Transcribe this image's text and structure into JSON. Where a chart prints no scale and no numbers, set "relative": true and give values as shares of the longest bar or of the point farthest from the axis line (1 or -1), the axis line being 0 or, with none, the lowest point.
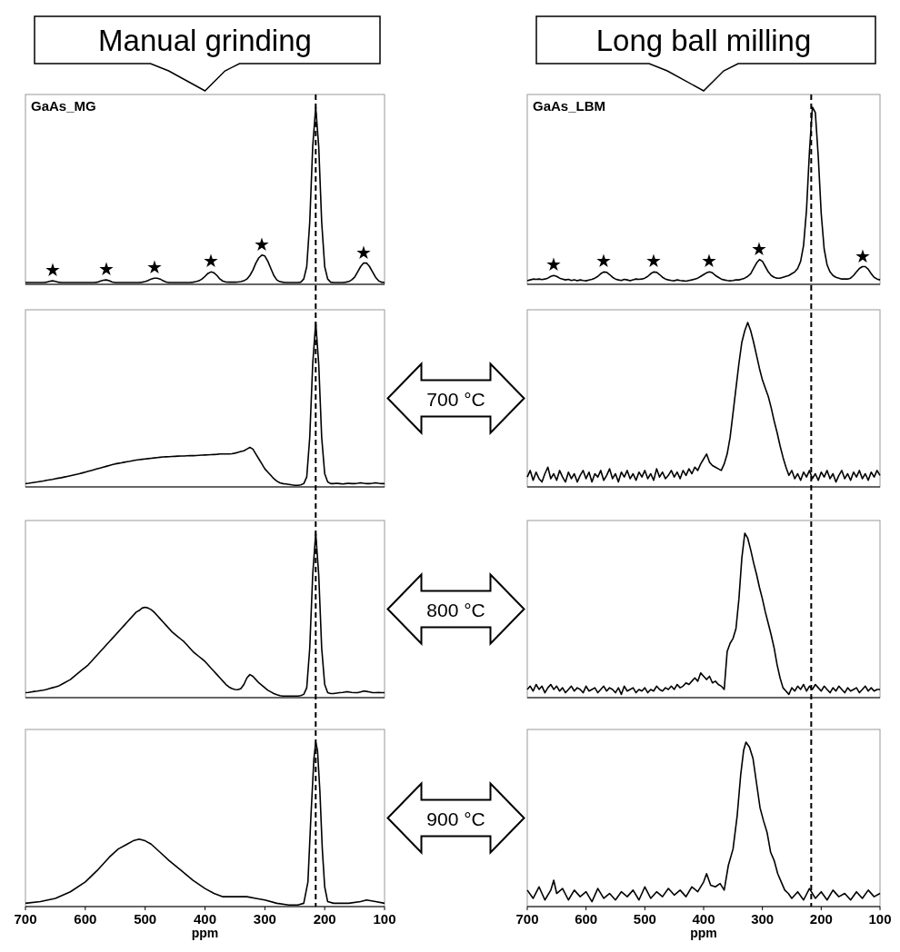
{
  "chart_data": [
    {
      "type": "line",
      "title": "Manual grinding",
      "subtitle": "GaAs_MG",
      "relative": true,
      "line_style": "solid",
      "marker": "none",
      "categories": [
        null,
        null,
        null,
        null,
        null,
        null,
        null,
        null,
        null,
        null,
        null,
        null,
        null,
        null,
        null,
        null,
        null,
        null,
        null,
        null,
        null,
        null,
        null,
        null,
        null,
        null,
        null,
        null,
        null,
        null,
        null,
        null,
        null,
        null,
        null,
        null,
        null,
        null,
        null,
        null,
        null,
        null,
        null,
        null,
        null,
        null,
        null,
        null,
        null,
        null,
        null,
        null,
        null,
        null,
        null,
        null,
        null,
        null,
        null,
        null,
        null,
        null,
        null,
        null,
        null,
        null,
        null,
        null,
        null,
        null,
        null,
        null,
        null,
        null,
        null,
        null,
        null,
        null,
        null,
        null,
        null,
        null,
        null,
        null,
        null,
        null,
        null,
        null,
        null,
        null,
        null,
        null,
        null,
        null,
        null,
        null,
        null,
        null,
        null,
        null,
        null,
        null,
        null,
        null,
        null,
        null,
        null,
        null,
        null,
        null,
        null,
        null,
        null,
        null,
        null,
        null,
        null,
        null,
        null,
        null,
        null
      ],
      "color": "#000000",
      "values": [
        0.01,
        0.01,
        0.01,
        0.01,
        0.01,
        0.01,
        0.01,
        0.012,
        0.017,
        0.02,
        0.017,
        0.012,
        0.01,
        0.01,
        0.01,
        0.01,
        0.01,
        0.01,
        0.01,
        0.01,
        0.01,
        0.01,
        0.01,
        0.01,
        0.012,
        0.018,
        0.023,
        0.025,
        0.02,
        0.013,
        0.01,
        0.01,
        0.01,
        0.01,
        0.01,
        0.01,
        0.01,
        0.01,
        0.01,
        0.012,
        0.015,
        0.022,
        0.03,
        0.035,
        0.035,
        0.03,
        0.02,
        0.013,
        0.01,
        0.01,
        0.01,
        0.01,
        0.01,
        0.01,
        0.01,
        0.01,
        0.012,
        0.015,
        0.02,
        0.03,
        0.045,
        0.062,
        0.07,
        0.065,
        0.05,
        0.03,
        0.018,
        0.013,
        0.012,
        0.012,
        0.012,
        0.013,
        0.015,
        0.02,
        0.03,
        0.05,
        0.08,
        0.12,
        0.15,
        0.165,
        0.16,
        0.13,
        0.09,
        0.05,
        0.025,
        0.015,
        0.012,
        0.01,
        0.01,
        0.01,
        0.01,
        0.01,
        0.012,
        0.03,
        0.1,
        0.35,
        0.78,
        1,
        0.78,
        0.35,
        0.1,
        0.03,
        0.012,
        0.01,
        0.01,
        0.01,
        0.01,
        0.012,
        0.015,
        0.025,
        0.04,
        0.07,
        0.1,
        0.12,
        0.12,
        0.1,
        0.07,
        0.04,
        0.02,
        0.012,
        0.01
      ],
      "annotations": [
        {
          "text": "★"
        },
        {
          "text": "★"
        },
        {
          "text": "★"
        },
        {
          "text": "★"
        },
        {
          "text": "★"
        },
        {
          "text": "★"
        }
      ]
    },
    {
      "type": "line",
      "title": "Long ball milling",
      "subtitle": "GaAs_LBM",
      "relative": true,
      "line_style": "solid",
      "marker": "none",
      "categories": [
        null,
        null,
        null,
        null,
        null,
        null,
        null,
        null,
        null,
        null,
        null,
        null,
        null,
        null,
        null,
        null,
        null,
        null,
        null,
        null,
        null,
        null,
        null,
        null,
        null,
        null,
        null,
        null,
        null,
        null,
        null,
        null,
        null,
        null,
        null,
        null,
        null,
        null,
        null,
        null,
        null,
        null,
        null,
        null,
        null,
        null,
        null,
        null,
        null,
        null,
        null,
        null,
        null,
        null,
        null,
        null,
        null,
        null,
        null,
        null,
        null,
        null,
        null,
        null,
        null,
        null,
        null,
        null,
        null,
        null,
        null,
        null,
        null,
        null,
        null,
        null,
        null,
        null,
        null,
        null,
        null,
        null,
        null,
        null,
        null,
        null,
        null,
        null,
        null,
        null,
        null,
        null,
        null,
        null,
        null,
        null,
        null,
        null,
        null,
        null,
        null,
        null,
        null,
        null,
        null,
        null,
        null,
        null,
        null,
        null,
        null,
        null,
        null,
        null,
        null,
        null,
        null,
        null,
        null,
        null,
        null
      ],
      "color": "#000000",
      "values": [
        0.02,
        0.025,
        0.03,
        0.028,
        0.03,
        0.027,
        0.03,
        0.035,
        0.045,
        0.05,
        0.045,
        0.035,
        0.03,
        0.025,
        0.028,
        0.022,
        0.026,
        0.02,
        0.025,
        0.022,
        0.02,
        0.024,
        0.028,
        0.035,
        0.045,
        0.06,
        0.07,
        0.068,
        0.055,
        0.04,
        0.03,
        0.025,
        0.022,
        0.028,
        0.025,
        0.02,
        0.026,
        0.03,
        0.028,
        0.03,
        0.035,
        0.045,
        0.06,
        0.07,
        0.068,
        0.055,
        0.04,
        0.03,
        0.025,
        0.022,
        0.02,
        0.025,
        0.022,
        0.02,
        0.018,
        0.022,
        0.025,
        0.03,
        0.035,
        0.045,
        0.055,
        0.065,
        0.07,
        0.065,
        0.05,
        0.04,
        0.03,
        0.025,
        0.022,
        0.02,
        0.022,
        0.025,
        0.025,
        0.03,
        0.035,
        0.045,
        0.06,
        0.09,
        0.12,
        0.14,
        0.13,
        0.1,
        0.07,
        0.05,
        0.04,
        0.035,
        0.035,
        0.04,
        0.045,
        0.05,
        0.06,
        0.07,
        0.09,
        0.13,
        0.22,
        0.42,
        0.75,
        1,
        0.97,
        0.72,
        0.4,
        0.2,
        0.11,
        0.07,
        0.05,
        0.04,
        0.035,
        0.03,
        0.03,
        0.03,
        0.035,
        0.05,
        0.07,
        0.09,
        0.1,
        0.1,
        0.085,
        0.06,
        0.04,
        0.03,
        0.025
      ],
      "annotations": [
        {
          "text": "★"
        },
        {
          "text": "★"
        },
        {
          "text": "★"
        },
        {
          "text": "★"
        },
        {
          "text": "★"
        },
        {
          "text": "★"
        }
      ]
    },
    {
      "type": "line",
      "annotations": [
        "700 °C"
      ],
      "relative": true,
      "color": "#000000",
      "line_style": "solid",
      "marker": "none",
      "categories": [
        null,
        null,
        null,
        null,
        null,
        null,
        null,
        null,
        null,
        null,
        null,
        null,
        null,
        null,
        null,
        null,
        null,
        null,
        null,
        null,
        null,
        null,
        null,
        null,
        null,
        null,
        null,
        null,
        null,
        null,
        null,
        null,
        null,
        null,
        null,
        null,
        null,
        null,
        null,
        null,
        null,
        null,
        null,
        null,
        null,
        null,
        null,
        null,
        null,
        null,
        null,
        null,
        null,
        null,
        null,
        null,
        null,
        null,
        null,
        null,
        null,
        null,
        null,
        null,
        null,
        null,
        null,
        null,
        null,
        null,
        null,
        null,
        null,
        null,
        null,
        null,
        null,
        null,
        null,
        null,
        null,
        null,
        null,
        null,
        null,
        null,
        null,
        null,
        null,
        null,
        null,
        null,
        null,
        null,
        null,
        null,
        null,
        null,
        null,
        null,
        null,
        null,
        null,
        null,
        null,
        null,
        null,
        null,
        null,
        null,
        null,
        null,
        null,
        null,
        null,
        null,
        null,
        null,
        null,
        null,
        null
      ],
      "values": [
        0.02,
        0.022,
        0.025,
        0.028,
        0.03,
        0.033,
        0.036,
        0.04,
        0.043,
        0.046,
        0.05,
        0.053,
        0.056,
        0.06,
        0.064,
        0.068,
        0.072,
        0.076,
        0.08,
        0.085,
        0.09,
        0.095,
        0.1,
        0.105,
        0.11,
        0.115,
        0.12,
        0.125,
        0.13,
        0.135,
        0.14,
        0.143,
        0.146,
        0.15,
        0.153,
        0.156,
        0.16,
        0.163,
        0.166,
        0.168,
        0.17,
        0.172,
        0.174,
        0.176,
        0.178,
        0.18,
        0.182,
        0.183,
        0.184,
        0.185,
        0.186,
        0.187,
        0.188,
        0.188,
        0.189,
        0.19,
        0.19,
        0.191,
        0.192,
        0.193,
        0.194,
        0.195,
        0.196,
        0.197,
        0.198,
        0.2,
        0.2,
        0.2,
        0.2,
        0.202,
        0.205,
        0.21,
        0.215,
        0.22,
        0.23,
        0.24,
        0.23,
        0.2,
        0.17,
        0.14,
        0.11,
        0.09,
        0.07,
        0.05,
        0.035,
        0.025,
        0.02,
        0.018,
        0.015,
        0.012,
        0.01,
        0.01,
        0.012,
        0.02,
        0.06,
        0.3,
        0.75,
        1,
        0.75,
        0.3,
        0.08,
        0.03,
        0.02,
        0.02,
        0.022,
        0.02,
        0.018,
        0.02,
        0.022,
        0.02,
        0.02,
        0.022,
        0.025,
        0.022,
        0.02,
        0.02,
        0.022,
        0.025,
        0.022,
        0.02,
        0.02
      ]
    },
    {
      "type": "line",
      "relative": true,
      "color": "#000000",
      "line_style": "solid",
      "marker": "none",
      "categories": [
        null,
        null,
        null,
        null,
        null,
        null,
        null,
        null,
        null,
        null,
        null,
        null,
        null,
        null,
        null,
        null,
        null,
        null,
        null,
        null,
        null,
        null,
        null,
        null,
        null,
        null,
        null,
        null,
        null,
        null,
        null,
        null,
        null,
        null,
        null,
        null,
        null,
        null,
        null,
        null,
        null,
        null,
        null,
        null,
        null,
        null,
        null,
        null,
        null,
        null,
        null,
        null,
        null,
        null,
        null,
        null,
        null,
        null,
        null,
        null,
        null,
        null,
        null,
        null,
        null,
        null,
        null,
        null,
        null,
        null,
        null,
        null,
        null,
        null,
        null,
        null,
        null,
        null,
        null,
        null,
        null,
        null,
        null,
        null,
        null,
        null,
        null,
        null,
        null,
        null,
        null,
        null,
        null,
        null,
        null,
        null,
        null,
        null,
        null,
        null,
        null,
        null,
        null,
        null,
        null,
        null,
        null,
        null,
        null,
        null,
        null,
        null,
        null,
        null,
        null,
        null,
        null,
        null,
        null,
        null,
        null
      ],
      "values": [
        0.06,
        0.1,
        0.04,
        0.09,
        0.05,
        0.03,
        0.08,
        0.12,
        0.05,
        0.08,
        0.04,
        0.1,
        0.06,
        0.03,
        0.09,
        0.05,
        0.08,
        0.03,
        0.07,
        0.1,
        0.05,
        0.09,
        0.03,
        0.08,
        0.06,
        0.1,
        0.04,
        0.07,
        0.11,
        0.05,
        0.08,
        0.03,
        0.09,
        0.06,
        0.1,
        0.05,
        0.08,
        0.04,
        0.09,
        0.06,
        0.1,
        0.05,
        0.08,
        0.04,
        0.11,
        0.06,
        0.09,
        0.05,
        0.07,
        0.1,
        0.06,
        0.09,
        0.05,
        0.1,
        0.07,
        0.11,
        0.08,
        0.12,
        0.1,
        0.14,
        0.17,
        0.2,
        0.15,
        0.13,
        0.12,
        0.11,
        0.1,
        0.14,
        0.2,
        0.3,
        0.45,
        0.6,
        0.75,
        0.88,
        0.95,
        1,
        0.95,
        0.88,
        0.8,
        0.72,
        0.65,
        0.6,
        0.55,
        0.48,
        0.4,
        0.33,
        0.25,
        0.18,
        0.12,
        0.07,
        0.1,
        0.05,
        0.08,
        0.04,
        0.09,
        0.06,
        0.1,
        0.05,
        0.08,
        0.04,
        0.09,
        0.06,
        0.1,
        0.05,
        0.08,
        0.03,
        0.07,
        0.1,
        0.05,
        0.08,
        0.04,
        0.09,
        0.06,
        0.1,
        0.05,
        0.08,
        0.04,
        0.09,
        0.06,
        0.1,
        0.07
      ]
    },
    {
      "type": "line",
      "annotations": [
        "800 °C"
      ],
      "relative": true,
      "color": "#000000",
      "line_style": "solid",
      "marker": "none",
      "categories": [
        null,
        null,
        null,
        null,
        null,
        null,
        null,
        null,
        null,
        null,
        null,
        null,
        null,
        null,
        null,
        null,
        null,
        null,
        null,
        null,
        null,
        null,
        null,
        null,
        null,
        null,
        null,
        null,
        null,
        null,
        null,
        null,
        null,
        null,
        null,
        null,
        null,
        null,
        null,
        null,
        null,
        null,
        null,
        null,
        null,
        null,
        null,
        null,
        null,
        null,
        null,
        null,
        null,
        null,
        null,
        null,
        null,
        null,
        null,
        null,
        null,
        null,
        null,
        null,
        null,
        null,
        null,
        null,
        null,
        null,
        null,
        null,
        null,
        null,
        null,
        null,
        null,
        null,
        null,
        null,
        null,
        null,
        null,
        null,
        null,
        null,
        null,
        null,
        null,
        null,
        null,
        null,
        null,
        null,
        null,
        null,
        null,
        null,
        null,
        null,
        null,
        null,
        null,
        null,
        null,
        null,
        null,
        null,
        null,
        null,
        null,
        null,
        null,
        null,
        null,
        null,
        null,
        null,
        null,
        null,
        null
      ],
      "values": [
        0.03,
        0.032,
        0.035,
        0.038,
        0.04,
        0.043,
        0.046,
        0.05,
        0.055,
        0.06,
        0.065,
        0.07,
        0.08,
        0.09,
        0.1,
        0.11,
        0.125,
        0.14,
        0.155,
        0.17,
        0.185,
        0.2,
        0.22,
        0.24,
        0.26,
        0.28,
        0.3,
        0.32,
        0.34,
        0.36,
        0.38,
        0.4,
        0.42,
        0.44,
        0.46,
        0.48,
        0.5,
        0.52,
        0.53,
        0.545,
        0.55,
        0.545,
        0.535,
        0.52,
        0.5,
        0.48,
        0.46,
        0.44,
        0.42,
        0.4,
        0.385,
        0.37,
        0.355,
        0.34,
        0.32,
        0.3,
        0.28,
        0.265,
        0.25,
        0.235,
        0.22,
        0.2,
        0.18,
        0.16,
        0.14,
        0.12,
        0.1,
        0.08,
        0.065,
        0.055,
        0.05,
        0.048,
        0.055,
        0.08,
        0.12,
        0.14,
        0.13,
        0.11,
        0.09,
        0.075,
        0.06,
        0.045,
        0.035,
        0.025,
        0.018,
        0.012,
        0.01,
        0.01,
        0.01,
        0.01,
        0.01,
        0.01,
        0.012,
        0.02,
        0.06,
        0.3,
        0.75,
        1,
        0.75,
        0.3,
        0.08,
        0.03,
        0.025,
        0.025,
        0.028,
        0.03,
        0.032,
        0.035,
        0.035,
        0.032,
        0.03,
        0.03,
        0.035,
        0.04,
        0.038,
        0.035,
        0.03,
        0.03,
        0.032,
        0.03,
        0.03
      ]
    },
    {
      "type": "line",
      "relative": true,
      "color": "#000000",
      "line_style": "solid",
      "marker": "none",
      "categories": [
        null,
        null,
        null,
        null,
        null,
        null,
        null,
        null,
        null,
        null,
        null,
        null,
        null,
        null,
        null,
        null,
        null,
        null,
        null,
        null,
        null,
        null,
        null,
        null,
        null,
        null,
        null,
        null,
        null,
        null,
        null,
        null,
        null,
        null,
        null,
        null,
        null,
        null,
        null,
        null,
        null,
        null,
        null,
        null,
        null,
        null,
        null,
        null,
        null,
        null,
        null,
        null,
        null,
        null,
        null,
        null,
        null,
        null,
        null,
        null,
        null,
        null,
        null,
        null,
        null,
        null,
        null,
        null,
        null,
        null,
        null,
        null,
        null,
        null,
        null,
        null,
        null,
        null,
        null,
        null,
        null,
        null,
        null,
        null,
        null,
        null,
        null,
        null,
        null,
        null,
        null,
        null,
        null,
        null,
        null,
        null,
        null,
        null,
        null,
        null,
        null,
        null,
        null,
        null,
        null,
        null,
        null,
        null,
        null,
        null,
        null,
        null,
        null,
        null,
        null,
        null,
        null,
        null,
        null,
        null,
        null
      ],
      "values": [
        0.05,
        0.07,
        0.04,
        0.08,
        0.05,
        0.07,
        0.03,
        0.06,
        0.08,
        0.05,
        0.07,
        0.04,
        0.06,
        0.03,
        0.05,
        0.07,
        0.04,
        0.06,
        0.05,
        0.03,
        0.07,
        0.04,
        0.05,
        0.06,
        0.03,
        0.05,
        0.07,
        0.04,
        0.06,
        0.05,
        0.03,
        0.06,
        0.02,
        0.07,
        0.04,
        0.05,
        0.06,
        0.03,
        0.05,
        0.04,
        0.06,
        0.03,
        0.05,
        0.04,
        0.07,
        0.05,
        0.04,
        0.06,
        0.05,
        0.07,
        0.05,
        0.08,
        0.06,
        0.07,
        0.09,
        0.08,
        0.1,
        0.12,
        0.1,
        0.15,
        0.13,
        0.11,
        0.13,
        0.09,
        0.1,
        0.08,
        0.07,
        0.05,
        0.28,
        0.33,
        0.36,
        0.42,
        0.6,
        0.85,
        1,
        0.97,
        0.9,
        0.82,
        0.75,
        0.67,
        0.6,
        0.52,
        0.45,
        0.38,
        0.3,
        0.2,
        0.12,
        0.06,
        0.04,
        0.02,
        0.06,
        0.04,
        0.07,
        0.05,
        0.08,
        0.04,
        0.07,
        0.05,
        0.08,
        0.06,
        0.04,
        0.07,
        0.05,
        0.03,
        0.06,
        0.04,
        0.07,
        0.05,
        0.03,
        0.06,
        0.04,
        0.05,
        0.06,
        0.03,
        0.05,
        0.07,
        0.04,
        0.06,
        0.04,
        0.05,
        0.05
      ]
    },
    {
      "type": "line",
      "annotations": [
        "900 °C"
      ],
      "xlabel": "ppm",
      "relative": true,
      "color": "#000000",
      "line_style": "solid",
      "marker": "none",
      "xlim": [
        700,
        100
      ],
      "xticks": [
        700,
        600,
        500,
        400,
        300,
        200,
        100
      ],
      "ref_lines": [
        {
          "axis": "x",
          "value": 215,
          "line_style": "dashed",
          "color": "#000000"
        }
      ],
      "x": [
        700,
        675,
        650,
        625,
        600,
        580,
        560,
        545,
        530,
        520,
        510,
        500,
        490,
        475,
        460,
        440,
        420,
        400,
        385,
        370,
        350,
        330,
        315,
        300,
        280,
        260,
        245,
        235,
        228,
        223,
        218,
        215,
        212,
        208,
        204,
        200,
        195,
        185,
        160,
        140,
        130,
        115,
        100
      ],
      "values": [
        0.02,
        0.03,
        0.05,
        0.09,
        0.15,
        0.22,
        0.3,
        0.35,
        0.38,
        0.4,
        0.41,
        0.4,
        0.38,
        0.33,
        0.28,
        0.22,
        0.16,
        0.11,
        0.08,
        0.06,
        0.06,
        0.06,
        0.05,
        0.04,
        0.02,
        0.01,
        0.01,
        0.02,
        0.15,
        0.55,
        0.9,
        1,
        0.95,
        0.7,
        0.35,
        0.12,
        0.03,
        0.02,
        0.02,
        0.03,
        0.04,
        0.03,
        0.02
      ]
    },
    {
      "type": "line",
      "xlabel": "ppm",
      "relative": true,
      "color": "#000000",
      "line_style": "solid",
      "marker": "none",
      "xlim": [
        700,
        100
      ],
      "xticks": [
        700,
        600,
        500,
        400,
        300,
        200,
        100
      ],
      "ref_lines": [
        {
          "axis": "x",
          "value": 217,
          "line_style": "dashed",
          "color": "#000000"
        }
      ],
      "x": [
        700,
        690,
        680,
        670,
        660,
        655,
        650,
        640,
        630,
        620,
        610,
        600,
        590,
        580,
        570,
        560,
        550,
        540,
        530,
        520,
        510,
        500,
        490,
        480,
        470,
        460,
        450,
        440,
        430,
        420,
        410,
        400,
        395,
        388,
        380,
        372,
        365,
        358,
        350,
        343,
        337,
        332,
        328,
        322,
        316,
        310,
        304,
        298,
        292,
        286,
        280,
        274,
        268,
        262,
        256,
        250,
        240,
        230,
        220,
        210,
        200,
        190,
        180,
        170,
        160,
        150,
        140,
        130,
        120,
        110,
        100
      ],
      "values": [
        0.1,
        0.05,
        0.12,
        0.04,
        0.1,
        0.16,
        0.08,
        0.11,
        0.04,
        0.1,
        0.06,
        0.09,
        0.03,
        0.11,
        0.05,
        0.08,
        0.04,
        0.09,
        0.06,
        0.1,
        0.04,
        0.12,
        0.05,
        0.09,
        0.06,
        0.11,
        0.07,
        0.1,
        0.06,
        0.12,
        0.09,
        0.15,
        0.2,
        0.13,
        0.12,
        0.14,
        0.1,
        0.25,
        0.35,
        0.55,
        0.8,
        0.95,
        1,
        0.97,
        0.9,
        0.75,
        0.6,
        0.52,
        0.45,
        0.33,
        0.28,
        0.2,
        0.15,
        0.1,
        0.08,
        0.05,
        0.09,
        0.04,
        0.11,
        0.05,
        0.09,
        0.04,
        0.1,
        0.06,
        0.08,
        0.04,
        0.09,
        0.05,
        0.1,
        0.06,
        0.08
      ]
    }
  ]
}
